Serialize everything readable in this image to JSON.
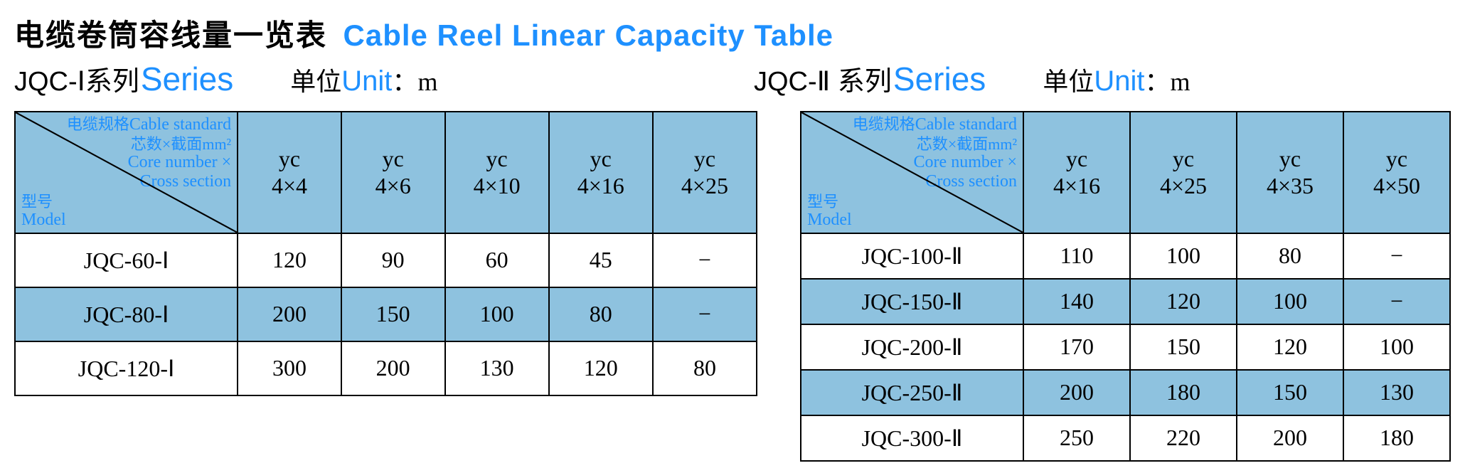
{
  "title_cn": "电缆卷筒容线量一览表",
  "title_en": "Cable Reel Linear Capacity Table",
  "colors": {
    "accent": "#1e90ff",
    "header_bg": "#8ec2df",
    "text": "#000000",
    "bg": "#ffffff"
  },
  "series1": {
    "label_cn": "JQC-Ⅰ系列",
    "label_en": "Series",
    "unit_cn": "单位",
    "unit_en": "Unit",
    "unit_sep": "：",
    "unit_val": "m"
  },
  "series2": {
    "label_cn": "JQC-Ⅱ 系列",
    "label_en": "Series",
    "unit_cn": "单位",
    "unit_en": "Unit",
    "unit_sep": "：",
    "unit_val": "m"
  },
  "diag": {
    "cable_cn": "电缆规格",
    "cable_en": "Cable standard",
    "core_cn": "芯数×截面mm²",
    "core_en1": "Core number ×",
    "core_en2": "Cross section",
    "model_cn": "型号",
    "model_en": "Model"
  },
  "table1": {
    "columns": [
      {
        "l1": "yc",
        "l2": "4×4"
      },
      {
        "l1": "yc",
        "l2": "4×6"
      },
      {
        "l1": "yc",
        "l2": "4×10"
      },
      {
        "l1": "yc",
        "l2": "4×16"
      },
      {
        "l1": "yc",
        "l2": "4×25"
      }
    ],
    "rows": [
      {
        "model": "JQC-60-Ⅰ",
        "v": [
          "120",
          "90",
          "60",
          "45",
          "−"
        ],
        "alt": false
      },
      {
        "model": "JQC-80-Ⅰ",
        "v": [
          "200",
          "150",
          "100",
          "80",
          "−"
        ],
        "alt": true
      },
      {
        "model": "JQC-120-Ⅰ",
        "v": [
          "300",
          "200",
          "130",
          "120",
          "80"
        ],
        "alt": false
      }
    ]
  },
  "table2": {
    "columns": [
      {
        "l1": "yc",
        "l2": "4×16"
      },
      {
        "l1": "yc",
        "l2": "4×25"
      },
      {
        "l1": "yc",
        "l2": "4×35"
      },
      {
        "l1": "yc",
        "l2": "4×50"
      }
    ],
    "rows": [
      {
        "model": "JQC-100-Ⅱ",
        "v": [
          "110",
          "100",
          "80",
          "−"
        ],
        "alt": false
      },
      {
        "model": "JQC-150-Ⅱ",
        "v": [
          "140",
          "120",
          "100",
          "−"
        ],
        "alt": true
      },
      {
        "model": "JQC-200-Ⅱ",
        "v": [
          "170",
          "150",
          "120",
          "100"
        ],
        "alt": false
      },
      {
        "model": "JQC-250-Ⅱ",
        "v": [
          "200",
          "180",
          "150",
          "130"
        ],
        "alt": true
      },
      {
        "model": "JQC-300-Ⅱ",
        "v": [
          "250",
          "220",
          "200",
          "180"
        ],
        "alt": false
      }
    ]
  }
}
